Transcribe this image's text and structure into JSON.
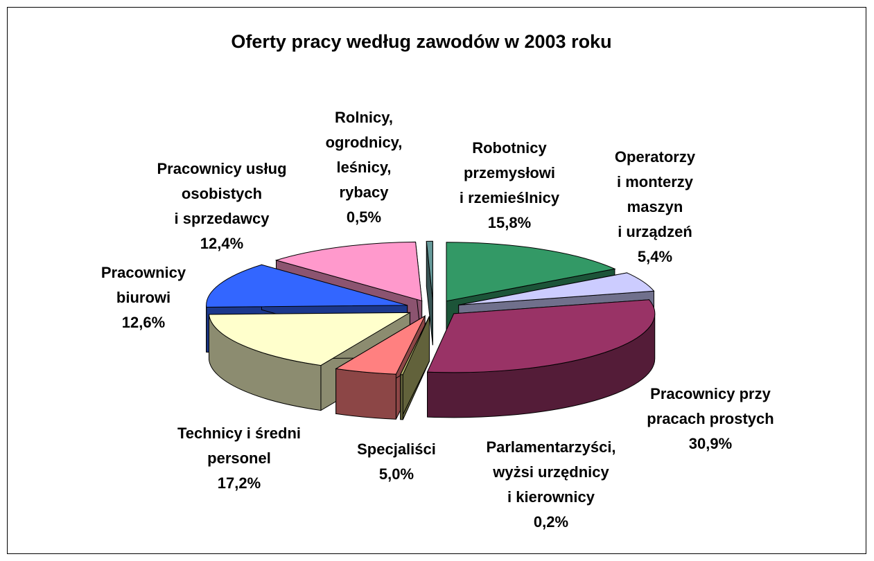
{
  "chart_data": {
    "type": "pie",
    "title": "Oferty pracy według zawodów w 2003 roku",
    "categories": [
      "Robotnicy\nprzemysłowi\ni rzemieślnicy",
      "Operatorzy\ni monterzy\nmaszyn\ni urządzeń",
      "Pracownicy przy\npracach prostych",
      "Parlamentarzyści,\nwyżsi urzędnicy\ni kierownicy",
      "Specjaliści",
      "Technicy i średni\npersonel",
      "Pracownicy\nbiurowi",
      "Pracownicy usług\nosobistych\ni sprzedawcy",
      "Rolnicy,\nogrodnicy,\nleśnicy,\nrybacy"
    ],
    "values": [
      15.8,
      5.4,
      30.9,
      0.2,
      5.0,
      17.2,
      12.6,
      12.4,
      0.5
    ],
    "value_labels": [
      "15,8%",
      "5,4%",
      "30,9%",
      "0,2%",
      "5,0%",
      "17,2%",
      "12,6%",
      "12,4%",
      "0,5%"
    ],
    "colors": [
      "#339966",
      "#ccccff",
      "#993366",
      "#b3b36b",
      "#ff8080",
      "#ffffcc",
      "#3366ff",
      "#ff99cc",
      "#669999"
    ]
  }
}
